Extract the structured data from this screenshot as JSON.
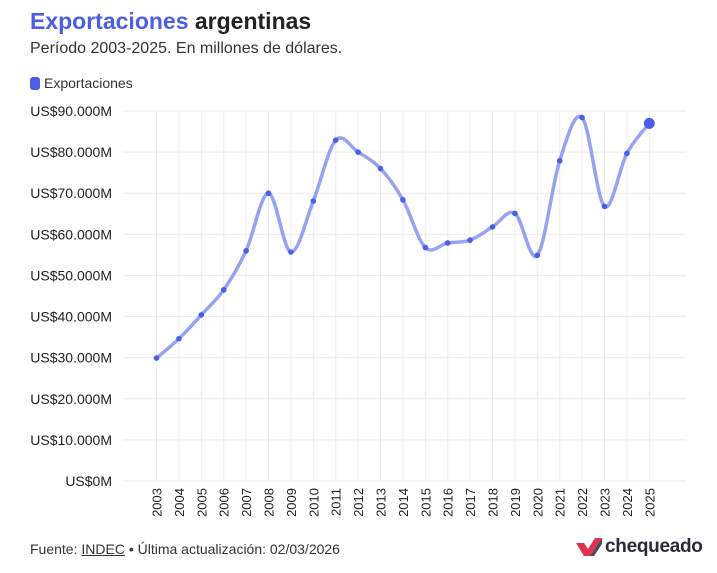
{
  "header": {
    "title_accent": "Exportaciones",
    "title_rest": "argentinas",
    "subtitle": "Período 2003-2025. En millones de dólares."
  },
  "legend": {
    "label": "Exportaciones"
  },
  "colors": {
    "accent": "#4a5ee6",
    "line": "#96a3f2",
    "point": "#4a5ee6",
    "grid": "#ececec",
    "logo_red": "#e0314f",
    "logo_dark": "#2b2b3a"
  },
  "chart_data": {
    "type": "line",
    "title": "Exportaciones argentinas",
    "subtitle": "Período 2003-2025. En millones de dólares.",
    "xlabel": "",
    "ylabel": "",
    "legend_position": "top-left",
    "grid": true,
    "ylim": [
      0,
      90000
    ],
    "yticks": [
      0,
      10000,
      20000,
      30000,
      40000,
      50000,
      60000,
      70000,
      80000,
      90000
    ],
    "ytick_labels": [
      "US$0M",
      "US$10.000M",
      "US$20.000M",
      "US$30.000M",
      "US$40.000M",
      "US$50.000M",
      "US$60.000M",
      "US$70.000M",
      "US$80.000M",
      "US$90.000M"
    ],
    "categories": [
      "2003",
      "2004",
      "2005",
      "2006",
      "2007",
      "2008",
      "2009",
      "2010",
      "2011",
      "2012",
      "2013",
      "2014",
      "2015",
      "2016",
      "2017",
      "2018",
      "2019",
      "2020",
      "2021",
      "2022",
      "2023",
      "2024",
      "2025"
    ],
    "series": [
      {
        "name": "Exportaciones",
        "values": [
          29900,
          34600,
          40400,
          46500,
          56000,
          70000,
          55700,
          68100,
          82900,
          80000,
          76000,
          68400,
          56800,
          57900,
          58600,
          61800,
          65100,
          54900,
          77900,
          88400,
          66800,
          79700,
          87000
        ]
      }
    ]
  },
  "footer": {
    "source_prefix": "Fuente:",
    "source_link": "INDEC",
    "separator": "•",
    "updated": "Última actualización: 02/03/2026"
  },
  "logo": {
    "text": "chequeado"
  }
}
